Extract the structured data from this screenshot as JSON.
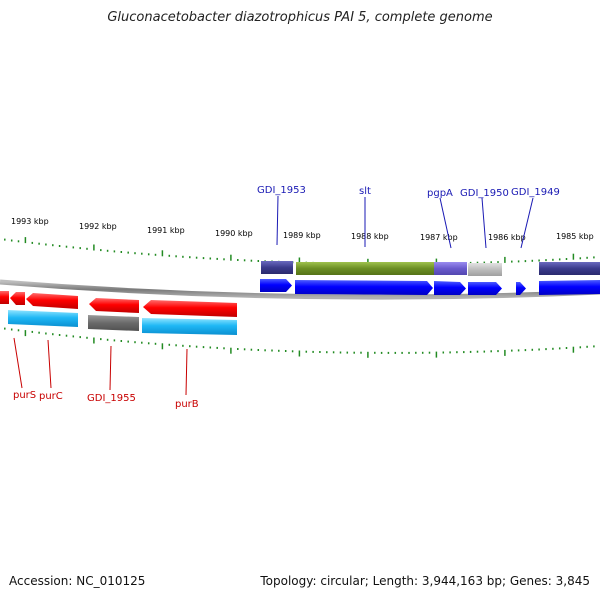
{
  "title": "Gluconacetobacter diazotrophicus PAI 5, complete genome",
  "footer": {
    "accession": "Accession: NC_010125",
    "topology": "Topology: circular; Length: 3,944,163 bp; Genes: 3,845"
  },
  "colors": {
    "kbp_label": "#000000",
    "ticks": "#228b22",
    "backbone": "#8c8c8c",
    "label_top": "#1a1ab4",
    "label_bottom": "#c80000"
  },
  "kbp_labels": [
    "1993 kbp",
    "1992 kbp",
    "1991 kbp",
    "1990 kbp",
    "1989 kbp",
    "1988 kbp",
    "1987 kbp",
    "1986 kbp",
    "1985 kbp"
  ],
  "gene_labels_top": [
    "GDI_1953",
    "slt",
    "pgpA",
    "GDI_1950",
    "GDI_1949"
  ],
  "gene_labels_bottom": [
    "purS",
    "purC",
    "GDI_1955",
    "purB"
  ],
  "features": [
    {
      "track": "cds-top",
      "color": "blue",
      "strand": "forward"
    },
    {
      "track": "cds-top",
      "color": "blue",
      "strand": "forward"
    },
    {
      "track": "cds-top",
      "color": "blue",
      "strand": "forward"
    },
    {
      "track": "cds-top",
      "color": "blue",
      "strand": "forward"
    },
    {
      "track": "cds-top",
      "color": "blue",
      "strand": "forward"
    },
    {
      "track": "cds-top",
      "color": "blue",
      "strand": "forward"
    },
    {
      "track": "gene-top",
      "color": "indigo"
    },
    {
      "track": "gene-top",
      "color": "olive"
    },
    {
      "track": "gene-top",
      "color": "slate-blue"
    },
    {
      "track": "gene-top",
      "color": "silver"
    },
    {
      "track": "gene-top",
      "color": "indigo"
    },
    {
      "track": "cds-bottom",
      "color": "red",
      "strand": "reverse"
    },
    {
      "track": "cds-bottom",
      "color": "red",
      "strand": "reverse"
    },
    {
      "track": "cds-bottom",
      "color": "red",
      "strand": "reverse"
    },
    {
      "track": "cds-bottom",
      "color": "red",
      "strand": "reverse"
    },
    {
      "track": "cds-bottom",
      "color": "red",
      "strand": "reverse"
    },
    {
      "track": "gene-bottom",
      "color": "cyan"
    },
    {
      "track": "gene-bottom",
      "color": "gray"
    },
    {
      "track": "gene-bottom",
      "color": "cyan"
    }
  ]
}
